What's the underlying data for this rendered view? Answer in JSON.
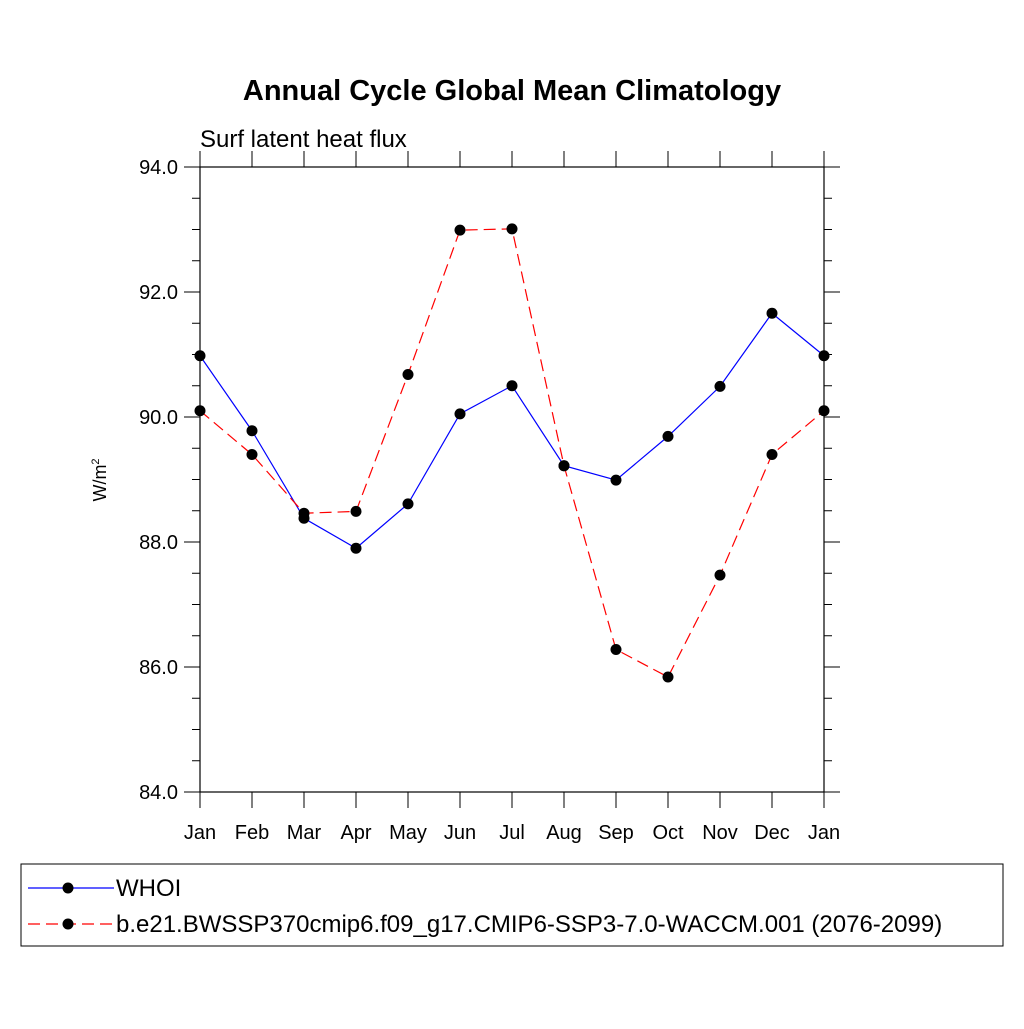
{
  "chart_data": {
    "type": "line",
    "title": "Annual Cycle Global Mean Climatology",
    "subtitle": "Surf latent heat flux",
    "xlabel": "",
    "ylabel": "W/m",
    "ylabel_sup": "2",
    "categories": [
      "Jan",
      "Feb",
      "Mar",
      "Apr",
      "May",
      "Jun",
      "Jul",
      "Aug",
      "Sep",
      "Oct",
      "Nov",
      "Dec",
      "Jan"
    ],
    "ylim": [
      84.0,
      94.0
    ],
    "yticks": [
      "84.0",
      "86.0",
      "88.0",
      "90.0",
      "92.0",
      "94.0"
    ],
    "grid": false,
    "legend_position": "bottom",
    "series": [
      {
        "name": "WHOI",
        "color": "#0000ff",
        "dash": "solid",
        "marker": "filled-circle",
        "values": [
          90.98,
          89.78,
          88.38,
          87.9,
          88.61,
          90.05,
          90.5,
          89.22,
          88.99,
          89.69,
          90.49,
          91.66,
          90.98
        ]
      },
      {
        "name": "b.e21.BWSSP370cmip6.f09_g17.CMIP6-SSP3-7.0-WACCM.001 (2076-2099)",
        "color": "#ff0000",
        "dash": "dashed",
        "marker": "filled-circle",
        "values": [
          90.1,
          89.4,
          88.46,
          88.49,
          90.68,
          92.99,
          93.01,
          89.22,
          86.28,
          85.84,
          87.47,
          89.4,
          90.1
        ]
      }
    ]
  }
}
